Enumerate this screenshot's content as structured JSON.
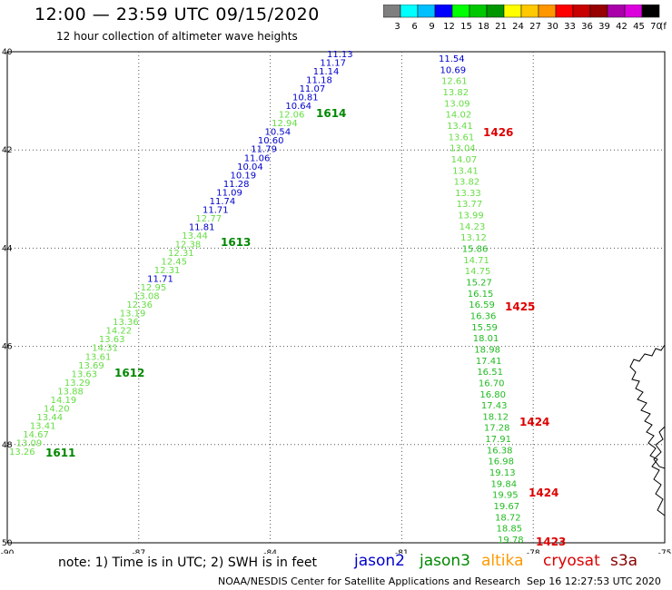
{
  "header": {
    "title": "12:00 — 23:59 UTC 09/15/2020",
    "subtitle": "12 hour collection of altimeter wave heights"
  },
  "color_scale": {
    "colors": [
      "#7f7f7f",
      "#00ffff",
      "#00bfff",
      "#0000ff",
      "#00ff00",
      "#00c800",
      "#009600",
      "#ffff00",
      "#ffc800",
      "#ff9600",
      "#ff0000",
      "#c80000",
      "#960000",
      "#aa00aa",
      "#dc00dc",
      "#000000"
    ],
    "labels": [
      "3",
      "6",
      "9",
      "12",
      "15",
      "18",
      "21",
      "24",
      "27",
      "30",
      "33",
      "36",
      "39",
      "42",
      "45",
      "70"
    ],
    "unit": "(ft)"
  },
  "map": {
    "lon_ticks": [
      "-90",
      "-87",
      "-84",
      "-81",
      "-78",
      "-75"
    ],
    "lat_ticks": [
      "40",
      "42",
      "44",
      "46",
      "48",
      "50"
    ],
    "lon_range": [
      -90,
      -75
    ],
    "lat_range": [
      50,
      40
    ],
    "grid": "dotted"
  },
  "tracks": {
    "west": [
      {
        "label": "11.13",
        "color": "#0000cc"
      },
      {
        "label": "11.17",
        "color": "#0000cc"
      },
      {
        "label": "11.14",
        "color": "#0000cc"
      },
      {
        "label": "11.18",
        "color": "#0000cc"
      },
      {
        "label": "11.07",
        "color": "#0000cc"
      },
      {
        "label": "10.81",
        "color": "#0000cc"
      },
      {
        "label": "10.64",
        "color": "#0000cc"
      },
      {
        "label": "12.06",
        "color": "#66dd44"
      },
      {
        "label": "12.94",
        "color": "#66dd44"
      },
      {
        "label": "10.54",
        "color": "#0000cc"
      },
      {
        "label": "10.60",
        "color": "#0000cc"
      },
      {
        "label": "11.79",
        "color": "#0000cc"
      },
      {
        "label": "11.06",
        "color": "#0000cc"
      },
      {
        "label": "10.04",
        "color": "#0000cc"
      },
      {
        "label": "10.19",
        "color": "#0000cc"
      },
      {
        "label": "11.28",
        "color": "#0000cc"
      },
      {
        "label": "11.09",
        "color": "#0000cc"
      },
      {
        "label": "11.74",
        "color": "#0000cc"
      },
      {
        "label": "11.71",
        "color": "#0000cc"
      },
      {
        "label": "12.77",
        "color": "#66dd44"
      },
      {
        "label": "11.81",
        "color": "#0000cc"
      },
      {
        "label": "13.44",
        "color": "#66dd44"
      },
      {
        "label": "12.38",
        "color": "#66dd44"
      },
      {
        "label": "12.31",
        "color": "#66dd44"
      },
      {
        "label": "12.45",
        "color": "#66dd44"
      },
      {
        "label": "12.31",
        "color": "#66dd44"
      },
      {
        "label": "11.71",
        "color": "#0000cc"
      },
      {
        "label": "12.95",
        "color": "#66dd44"
      },
      {
        "label": "13.08",
        "color": "#66dd44"
      },
      {
        "label": "12.36",
        "color": "#66dd44"
      },
      {
        "label": "13.19",
        "color": "#66dd44"
      },
      {
        "label": "13.36",
        "color": "#66dd44"
      },
      {
        "label": "14.22",
        "color": "#66dd44"
      },
      {
        "label": "13.63",
        "color": "#66dd44"
      },
      {
        "label": "14.31",
        "color": "#66dd44"
      },
      {
        "label": "13.61",
        "color": "#66dd44"
      },
      {
        "label": "13.69",
        "color": "#66dd44"
      },
      {
        "label": "13.63",
        "color": "#66dd44"
      },
      {
        "label": "13.29",
        "color": "#66dd44"
      },
      {
        "label": "13.88",
        "color": "#66dd44"
      },
      {
        "label": "14.19",
        "color": "#66dd44"
      },
      {
        "label": "14.20",
        "color": "#66dd44"
      },
      {
        "label": "13.44",
        "color": "#66dd44"
      },
      {
        "label": "13.41",
        "color": "#66dd44"
      },
      {
        "label": "14.67",
        "color": "#66dd44"
      },
      {
        "label": "13.09",
        "color": "#66dd44"
      },
      {
        "label": "13.26",
        "color": "#66dd44"
      }
    ],
    "east": [
      {
        "label": "11.54",
        "color": "#0000cc"
      },
      {
        "label": "10.69",
        "color": "#0000cc"
      },
      {
        "label": "12.61",
        "color": "#66dd44"
      },
      {
        "label": "13.82",
        "color": "#66dd44"
      },
      {
        "label": "13.09",
        "color": "#66dd44"
      },
      {
        "label": "14.02",
        "color": "#66dd44"
      },
      {
        "label": "13.41",
        "color": "#66dd44"
      },
      {
        "label": "13.61",
        "color": "#66dd44"
      },
      {
        "label": "13.04",
        "color": "#66dd44"
      },
      {
        "label": "14.07",
        "color": "#66dd44"
      },
      {
        "label": "13.41",
        "color": "#66dd44"
      },
      {
        "label": "13.82",
        "color": "#66dd44"
      },
      {
        "label": "13.33",
        "color": "#66dd44"
      },
      {
        "label": "13.77",
        "color": "#66dd44"
      },
      {
        "label": "13.99",
        "color": "#66dd44"
      },
      {
        "label": "14.23",
        "color": "#66dd44"
      },
      {
        "label": "13.12",
        "color": "#66dd44"
      },
      {
        "label": "15.86",
        "color": "#22bb22"
      },
      {
        "label": "14.71",
        "color": "#66dd44"
      },
      {
        "label": "14.75",
        "color": "#66dd44"
      },
      {
        "label": "15.27",
        "color": "#22bb22"
      },
      {
        "label": "16.15",
        "color": "#22bb22"
      },
      {
        "label": "16.59",
        "color": "#22bb22"
      },
      {
        "label": "16.36",
        "color": "#22bb22"
      },
      {
        "label": "15.59",
        "color": "#22bb22"
      },
      {
        "label": "18.01",
        "color": "#22bb22"
      },
      {
        "label": "18.98",
        "color": "#22bb22"
      },
      {
        "label": "17.41",
        "color": "#22bb22"
      },
      {
        "label": "16.51",
        "color": "#22bb22"
      },
      {
        "label": "16.70",
        "color": "#22bb22"
      },
      {
        "label": "16.80",
        "color": "#22bb22"
      },
      {
        "label": "17.43",
        "color": "#22bb22"
      },
      {
        "label": "18.12",
        "color": "#22bb22"
      },
      {
        "label": "17.28",
        "color": "#22bb22"
      },
      {
        "label": "17.91",
        "color": "#22bb22"
      },
      {
        "label": "16.38",
        "color": "#22bb22"
      },
      {
        "label": "16.98",
        "color": "#22bb22"
      },
      {
        "label": "19.13",
        "color": "#22bb22"
      },
      {
        "label": "19.84",
        "color": "#22bb22"
      },
      {
        "label": "19.95",
        "color": "#22bb22"
      },
      {
        "label": "19.67",
        "color": "#22bb22"
      },
      {
        "label": "18.72",
        "color": "#22bb22"
      },
      {
        "label": "18.85",
        "color": "#22bb22"
      },
      {
        "label": "19.78",
        "color": "#22bb22"
      }
    ]
  },
  "time_labels": [
    {
      "label": "1614",
      "color": "#008800"
    },
    {
      "label": "1613",
      "color": "#008800"
    },
    {
      "label": "1612",
      "color": "#008800"
    },
    {
      "label": "1611",
      "color": "#008800"
    },
    {
      "label": "1426",
      "color": "#dd0000"
    },
    {
      "label": "1425",
      "color": "#dd0000"
    },
    {
      "label": "1424",
      "color": "#dd0000"
    },
    {
      "label": "1424",
      "color": "#dd0000"
    },
    {
      "label": "1423",
      "color": "#dd0000"
    }
  ],
  "note": "note:  1) Time is in UTC; 2) SWH is in feet",
  "satellites": [
    {
      "name": "jason2",
      "color": "#0000cc"
    },
    {
      "name": "jason3",
      "color": "#008800"
    },
    {
      "name": "altika",
      "color": "#ff9900"
    },
    {
      "name": "cryosat",
      "color": "#dd0000"
    },
    {
      "name": "s3a",
      "color": "#880000"
    }
  ],
  "footer": {
    "credit": "NOAA/NESDIS Center for Satellite Applications and Research",
    "timestamp": "Sep 16 12:27:53 UTC 2020"
  }
}
